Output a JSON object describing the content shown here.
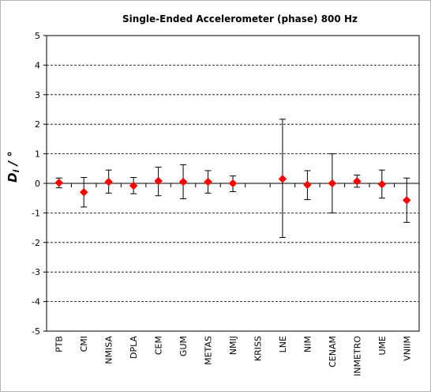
{
  "chart_data": {
    "type": "scatter",
    "title": "Single-Ended  Accelerometer  (phase)   800 Hz",
    "ylabel": "D",
    "ylabel_subscript": "i",
    "ylabel_unit": " / °",
    "xlabel": "",
    "ylim": [
      -5,
      5
    ],
    "yticks": [
      5,
      4,
      3,
      2,
      1,
      0,
      -1,
      -2,
      -3,
      -4,
      -5
    ],
    "grid": "horizontal dashed",
    "legend": "none",
    "marker": "diamond",
    "marker_color": "#ff0000",
    "errorbar_color": "#000000",
    "categories": [
      "PTB",
      "CMI",
      "NMISA",
      "DPLA",
      "CEM",
      "GUM",
      "METAS",
      "NMIJ",
      "KRISS",
      "LNE",
      "NIM",
      "CENAM",
      "INMETRO",
      "UME",
      "VNIIM"
    ],
    "values": [
      0.02,
      -0.3,
      0.05,
      -0.08,
      0.08,
      0.05,
      0.05,
      0.0,
      null,
      0.15,
      -0.05,
      0.0,
      0.07,
      -0.03,
      -0.57
    ],
    "err_upper": [
      0.18,
      0.2,
      0.45,
      0.2,
      0.55,
      0.63,
      0.43,
      0.25,
      null,
      2.17,
      0.43,
      1.0,
      0.28,
      0.45,
      0.18
    ],
    "err_lower": [
      -0.15,
      -0.8,
      -0.33,
      -0.35,
      -0.42,
      -0.52,
      -0.33,
      -0.28,
      null,
      -1.83,
      -0.55,
      -1.0,
      -0.13,
      -0.5,
      -1.32
    ]
  }
}
